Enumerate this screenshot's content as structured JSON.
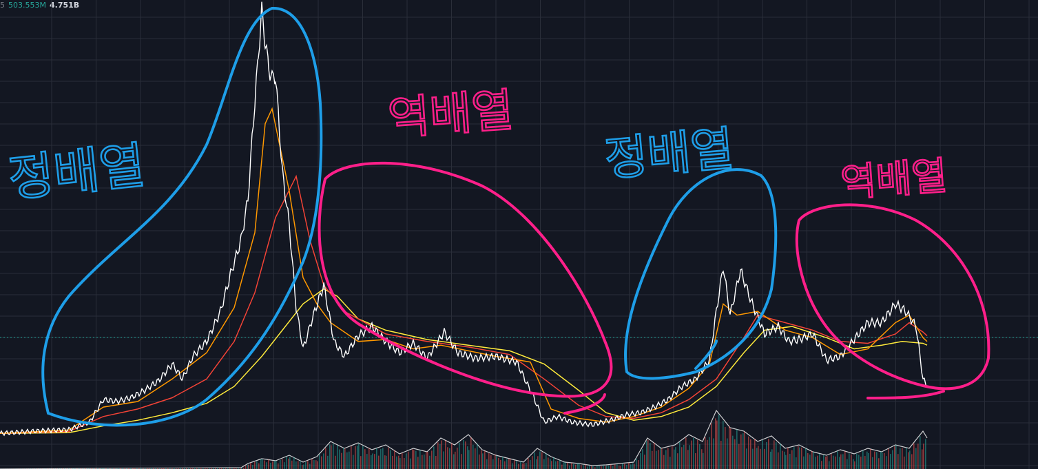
{
  "header": {
    "prefix": "5",
    "volume_ma": "503.553M",
    "volume": "4.751B"
  },
  "colors": {
    "background": "#131722",
    "grid": "#2a2e39",
    "ma_fast": "#ff9800",
    "ma_mid": "#f44336",
    "ma_slow": "#ffeb3b",
    "annot_blue": "#1e9ee8",
    "annot_pink": "#ff1f8a",
    "last_price_line": "#26a69a"
  },
  "annotations": [
    {
      "text": "정배열",
      "color": "blue"
    },
    {
      "text": "역배열",
      "color": "pink"
    },
    {
      "text": "정배열",
      "color": "blue"
    },
    {
      "text": "역배열",
      "color": "pink"
    }
  ],
  "chart_data": {
    "type": "line",
    "grid": true,
    "series": [
      {
        "role": "price",
        "color": "#ffffff",
        "x": [
          0,
          60,
          100,
          130,
          150,
          170,
          190,
          210,
          230,
          250,
          265,
          280,
          300,
          320,
          335,
          350,
          360,
          368,
          375,
          380,
          385,
          390,
          395,
          400,
          410,
          420,
          430,
          440,
          455,
          470,
          485,
          500,
          520,
          540,
          560,
          580,
          600,
          620,
          645,
          665,
          690,
          720,
          750,
          775,
          790,
          810,
          830,
          860,
          890,
          910,
          930,
          950,
          970,
          990,
          1010,
          1030,
          1040,
          1050,
          1060,
          1075,
          1090,
          1110,
          1130,
          1145,
          1160,
          1180,
          1200,
          1220,
          1240,
          1260,
          1280,
          1300,
          1315,
          1330,
          1340,
          1346
        ],
        "y": [
          0.05,
          0.12,
          0.15,
          0.35,
          0.95,
          0.9,
          1.0,
          1.2,
          1.45,
          1.9,
          1.5,
          2.1,
          2.5,
          3.3,
          4.3,
          5.2,
          6.3,
          8.4,
          10.1,
          11.3,
          10.5,
          9.8,
          9.5,
          9.6,
          7.0,
          5.6,
          3.4,
          2.3,
          3.2,
          4.0,
          2.5,
          2.1,
          2.65,
          2.9,
          2.5,
          2.2,
          2.45,
          2.05,
          2.75,
          2.2,
          2.05,
          2.1,
          1.95,
          1.0,
          0.35,
          0.5,
          0.35,
          0.28,
          0.42,
          0.55,
          0.6,
          0.75,
          0.95,
          1.3,
          1.5,
          2.0,
          3.3,
          4.5,
          3.2,
          4.4,
          3.6,
          2.7,
          2.9,
          2.5,
          2.55,
          2.7,
          2.0,
          2.1,
          2.55,
          3.0,
          3.0,
          3.5,
          3.3,
          2.9,
          1.5,
          1.3
        ]
      },
      {
        "role": "ma_fast",
        "color": "#ff9800",
        "x": [
          0,
          100,
          150,
          200,
          250,
          300,
          340,
          370,
          385,
          395,
          420,
          440,
          460,
          480,
          520,
          560,
          600,
          640,
          680,
          720,
          770,
          800,
          840,
          880,
          920,
          960,
          1000,
          1030,
          1050,
          1070,
          1100,
          1140,
          1180,
          1220,
          1260,
          1300,
          1320,
          1340,
          1346
        ],
        "y": [
          0.05,
          0.14,
          0.75,
          0.9,
          1.5,
          2.2,
          3.4,
          5.4,
          8.3,
          8.7,
          6.5,
          4.2,
          3.5,
          3.0,
          2.5,
          2.55,
          2.3,
          2.4,
          2.25,
          2.1,
          1.95,
          0.7,
          0.45,
          0.35,
          0.5,
          0.75,
          1.25,
          1.9,
          3.5,
          3.2,
          3.3,
          2.8,
          2.6,
          2.15,
          2.3,
          3.0,
          3.2,
          2.6,
          2.5
        ]
      },
      {
        "role": "ma_mid",
        "color": "#f44336",
        "x": [
          0,
          100,
          150,
          200,
          250,
          300,
          340,
          370,
          400,
          430,
          450,
          470,
          500,
          560,
          620,
          680,
          740,
          790,
          840,
          880,
          920,
          960,
          1000,
          1040,
          1080,
          1100,
          1140,
          1180,
          1220,
          1260,
          1300,
          1320,
          1340,
          1346
        ],
        "y": [
          0.05,
          0.1,
          0.5,
          0.7,
          1.0,
          1.5,
          2.5,
          3.8,
          5.8,
          6.9,
          5.2,
          4.0,
          3.3,
          2.7,
          2.5,
          2.35,
          2.15,
          1.5,
          0.8,
          0.5,
          0.45,
          0.6,
          0.95,
          1.5,
          2.6,
          3.2,
          3.0,
          2.8,
          2.5,
          2.45,
          2.7,
          3.0,
          2.75,
          2.65
        ]
      },
      {
        "role": "ma_slow",
        "color": "#ffeb3b",
        "x": [
          0,
          100,
          150,
          200,
          250,
          300,
          340,
          380,
          410,
          440,
          470,
          490,
          520,
          560,
          620,
          680,
          740,
          790,
          840,
          880,
          920,
          960,
          1000,
          1040,
          1080,
          1110,
          1150,
          1200,
          1240,
          1280,
          1310,
          1340,
          1346
        ],
        "y": [
          0.05,
          0.07,
          0.25,
          0.4,
          0.6,
          0.85,
          1.3,
          2.1,
          2.8,
          3.5,
          3.9,
          3.7,
          3.1,
          2.8,
          2.55,
          2.4,
          2.25,
          1.9,
          1.2,
          0.6,
          0.4,
          0.5,
          0.75,
          1.3,
          2.2,
          2.8,
          2.9,
          2.6,
          2.3,
          2.4,
          2.5,
          2.45,
          2.4
        ]
      }
    ],
    "volume": {
      "color": "#ffffff",
      "x": [
        0,
        350,
        360,
        380,
        400,
        420,
        440,
        460,
        480,
        500,
        520,
        540,
        560,
        580,
        600,
        620,
        640,
        660,
        680,
        700,
        720,
        740,
        760,
        780,
        800,
        820,
        840,
        860,
        880,
        900,
        920,
        940,
        960,
        980,
        1000,
        1020,
        1040,
        1060,
        1080,
        1100,
        1120,
        1140,
        1160,
        1180,
        1200,
        1220,
        1240,
        1260,
        1280,
        1300,
        1320,
        1340,
        1346
      ],
      "y": [
        0,
        2,
        8,
        15,
        12,
        20,
        10,
        18,
        40,
        30,
        38,
        28,
        35,
        22,
        30,
        25,
        45,
        35,
        50,
        28,
        20,
        15,
        10,
        30,
        18,
        10,
        8,
        5,
        6,
        8,
        10,
        45,
        30,
        35,
        50,
        40,
        85,
        60,
        55,
        40,
        48,
        30,
        35,
        25,
        20,
        28,
        22,
        30,
        25,
        35,
        30,
        55,
        45
      ]
    }
  }
}
